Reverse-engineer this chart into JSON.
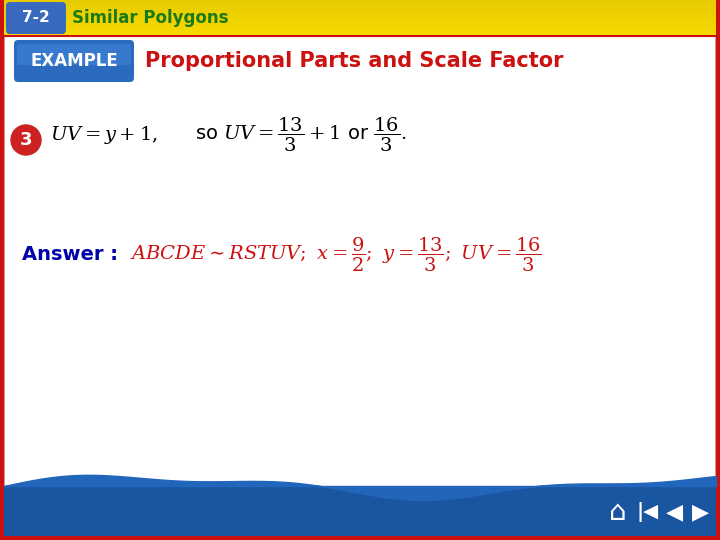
{
  "title": "Proportional Parts and Scale Factor",
  "header_label": "7-2",
  "header_text": "Similar Polygons",
  "example_label": "EXAMPLE",
  "step_number": "3",
  "bg_color": "#ffffff",
  "header_bg_top": "#f9d800",
  "header_bg_bot": "#f0c000",
  "header_label_bg": "#3a6abf",
  "header_label_color": "#ffffff",
  "header_text_color": "#1a7a1a",
  "example_btn_color": "#2a6abf",
  "title_color": "#cc1111",
  "answer_label_color": "#0000aa",
  "answer_text_color": "#cc1111",
  "step_circle_color": "#cc2222",
  "step_number_color": "#ffffff",
  "border_color": "#cc1111",
  "footer_color": "#1a55a0",
  "wave_color": "#2266bb",
  "main_eq_fontsize": 14,
  "answer_fontsize": 14,
  "title_fontsize": 15,
  "header_text_fontsize": 12
}
